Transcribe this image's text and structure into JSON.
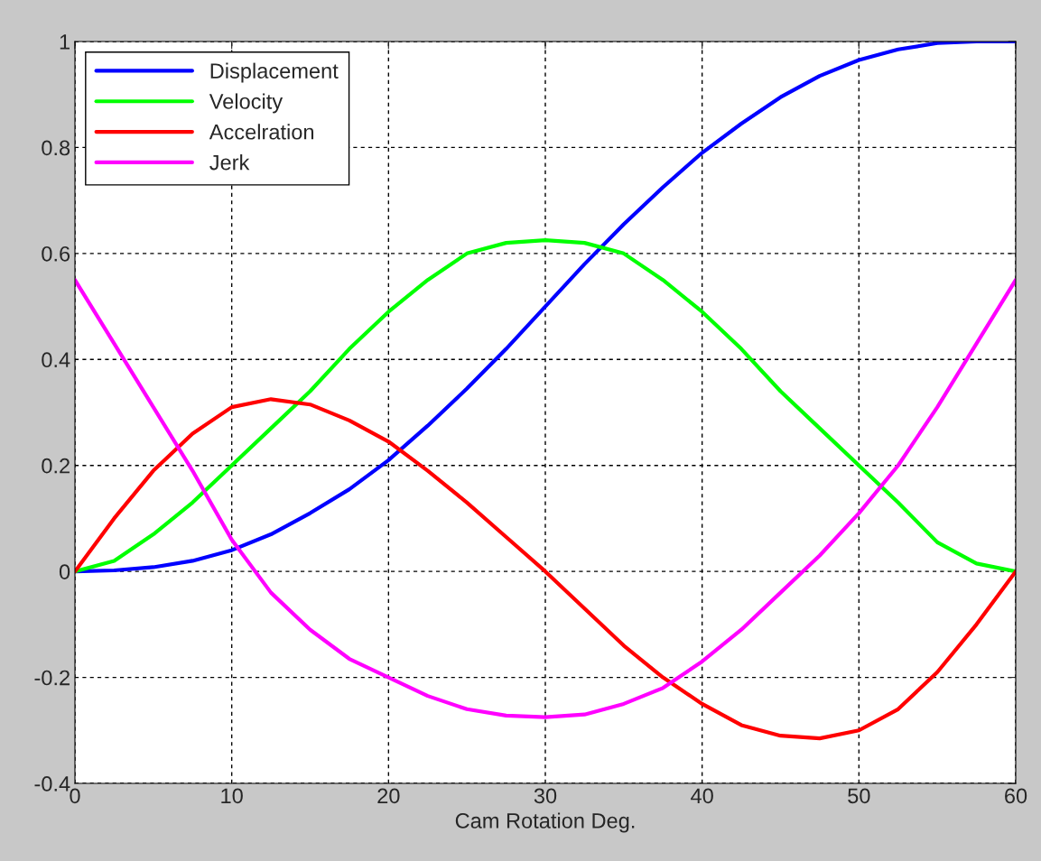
{
  "chart_data": {
    "type": "line",
    "xlabel": "Cam Rotation Deg.",
    "x": [
      0,
      2.5,
      5,
      7.5,
      10,
      12.5,
      15,
      17.5,
      20,
      22.5,
      25,
      27.5,
      30,
      32.5,
      35,
      37.5,
      40,
      42.5,
      45,
      47.5,
      50,
      52.5,
      55,
      57.5,
      60
    ],
    "series": [
      {
        "name": "Displacement",
        "color": "#0000ff",
        "values": [
          0,
          0.002,
          0.008,
          0.02,
          0.04,
          0.07,
          0.11,
          0.155,
          0.21,
          0.275,
          0.345,
          0.42,
          0.5,
          0.58,
          0.655,
          0.725,
          0.79,
          0.845,
          0.895,
          0.935,
          0.965,
          0.985,
          0.997,
          1,
          1
        ]
      },
      {
        "name": "Velocity",
        "color": "#00ff00",
        "values": [
          0,
          0.02,
          0.07,
          0.13,
          0.2,
          0.27,
          0.34,
          0.42,
          0.49,
          0.55,
          0.6,
          0.62,
          0.625,
          0.62,
          0.6,
          0.55,
          0.49,
          0.42,
          0.34,
          0.27,
          0.2,
          0.13,
          0.055,
          0.015,
          0
        ]
      },
      {
        "name": "Accelration",
        "color": "#ff0000",
        "values": [
          0,
          0.1,
          0.19,
          0.26,
          0.31,
          0.325,
          0.315,
          0.285,
          0.245,
          0.19,
          0.13,
          0.065,
          0,
          -0.07,
          -0.14,
          -0.2,
          -0.25,
          -0.29,
          -0.31,
          -0.315,
          -0.3,
          -0.26,
          -0.19,
          -0.1,
          0
        ]
      },
      {
        "name": "Jerk",
        "color": "#ff00ff",
        "values": [
          0.55,
          0.43,
          0.31,
          0.19,
          0.06,
          -0.04,
          -0.11,
          -0.165,
          -0.2,
          -0.235,
          -0.26,
          -0.272,
          -0.275,
          -0.27,
          -0.25,
          -0.22,
          -0.17,
          -0.11,
          -0.04,
          0.03,
          0.11,
          0.2,
          0.31,
          0.43,
          0.55
        ]
      }
    ],
    "xlim": [
      0,
      60
    ],
    "xticks": [
      0,
      10,
      20,
      30,
      40,
      50,
      60
    ],
    "ylim": [
      -0.4,
      1
    ],
    "yticks": [
      -0.4,
      -0.2,
      0,
      0.2,
      0.4,
      0.6,
      0.8,
      1
    ],
    "grid": true,
    "legend": "top left",
    "line_style": "solid",
    "marker": "none"
  }
}
